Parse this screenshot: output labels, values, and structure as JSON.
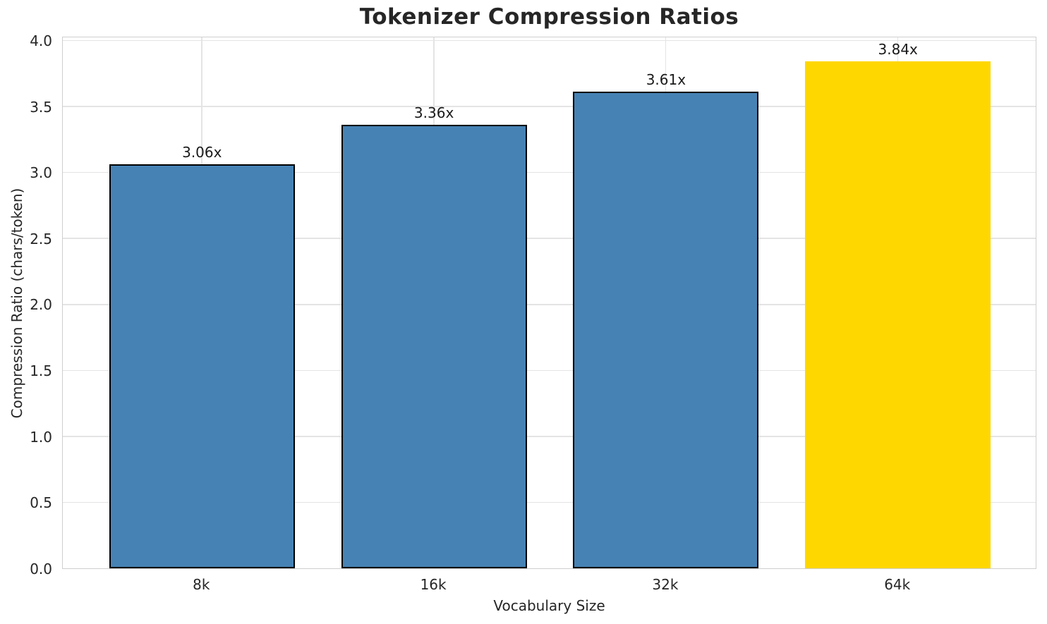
{
  "chart_data": {
    "type": "bar",
    "title": "Tokenizer Compression Ratios",
    "xlabel": "Vocabulary Size",
    "ylabel": "Compression Ratio (chars/token)",
    "categories": [
      "8k",
      "16k",
      "32k",
      "64k"
    ],
    "values": [
      3.06,
      3.36,
      3.61,
      3.84
    ],
    "bar_labels": [
      "3.06x",
      "3.36x",
      "3.61x",
      "3.84x"
    ],
    "bar_colors": [
      "#4682B4",
      "#4682B4",
      "#4682B4",
      "#FFD700"
    ],
    "bar_edge_colors": [
      "#000000",
      "#000000",
      "#000000",
      "none"
    ],
    "base_color": "#4682B4",
    "highlight_color": "#FFD700",
    "highlighted_category": "64k",
    "ylim": [
      0,
      4.032
    ],
    "yticks": [
      0,
      0.5,
      1,
      1.5,
      2,
      2.5,
      3,
      3.5,
      4
    ],
    "ytick_labels": [
      "0.0",
      "0.5",
      "1.0",
      "1.5",
      "2.0",
      "2.5",
      "3.0",
      "3.5",
      "4.0"
    ],
    "grid": true,
    "grid_color": "#e4e4e4",
    "spine_color": "#cfcfcf",
    "legend": false
  }
}
